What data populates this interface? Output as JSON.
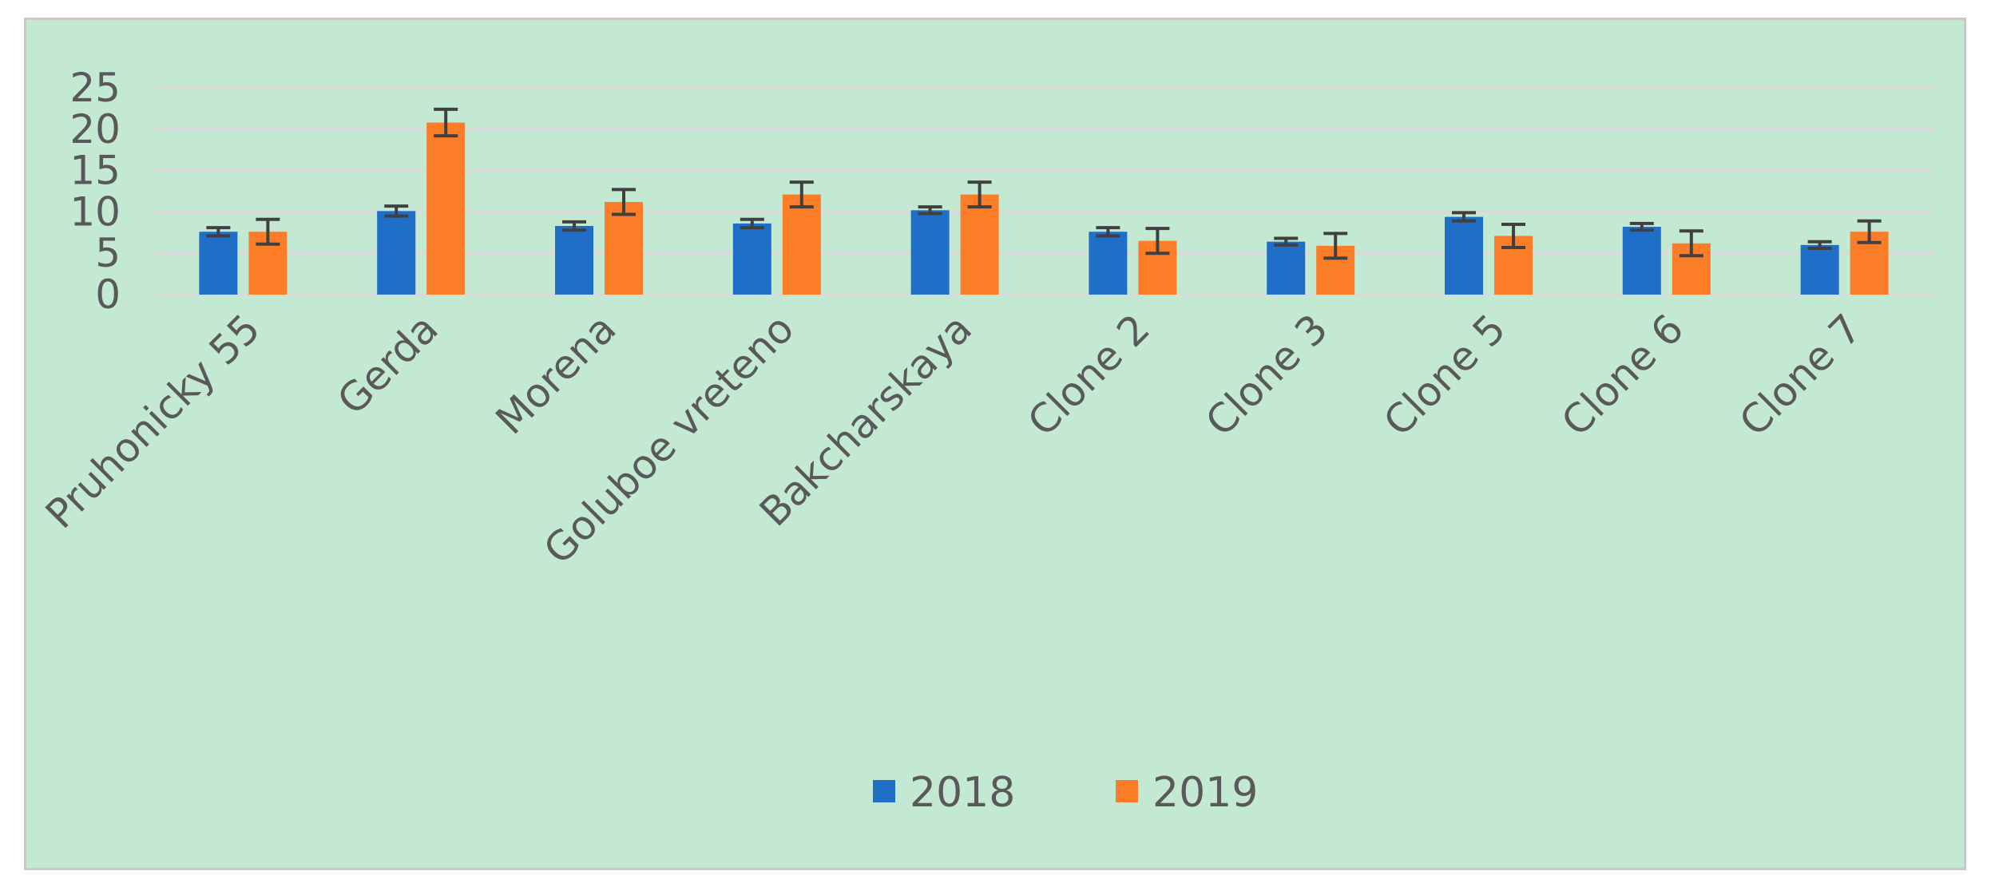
{
  "chart_data": {
    "type": "bar",
    "title": "",
    "xlabel": "",
    "ylabel": "",
    "ylim": [
      0,
      25
    ],
    "yticks": [
      0,
      5,
      10,
      15,
      20,
      25
    ],
    "grid": true,
    "legend_position": "bottom-center",
    "categories": [
      "Pruhonicky 55",
      "Gerda",
      "Morena",
      "Goluboe vreteno",
      "Bakcharskaya",
      "Clone 2",
      "Clone 3",
      "Clone 5",
      "Clone 6",
      "Clone 7"
    ],
    "series": [
      {
        "name": "2018",
        "color": "#1f6fc9",
        "values": [
          7.6,
          10.1,
          8.3,
          8.6,
          10.2,
          7.6,
          6.4,
          9.4,
          8.2,
          6.0
        ],
        "errors": [
          0.5,
          0.6,
          0.5,
          0.5,
          0.4,
          0.5,
          0.4,
          0.5,
          0.4,
          0.4
        ]
      },
      {
        "name": "2019",
        "color": "#fb7d27",
        "values": [
          7.6,
          20.8,
          11.2,
          12.1,
          12.1,
          6.5,
          5.9,
          7.1,
          6.2,
          7.6
        ],
        "errors": [
          1.5,
          1.6,
          1.5,
          1.5,
          1.5,
          1.5,
          1.5,
          1.4,
          1.5,
          1.3
        ]
      }
    ]
  }
}
